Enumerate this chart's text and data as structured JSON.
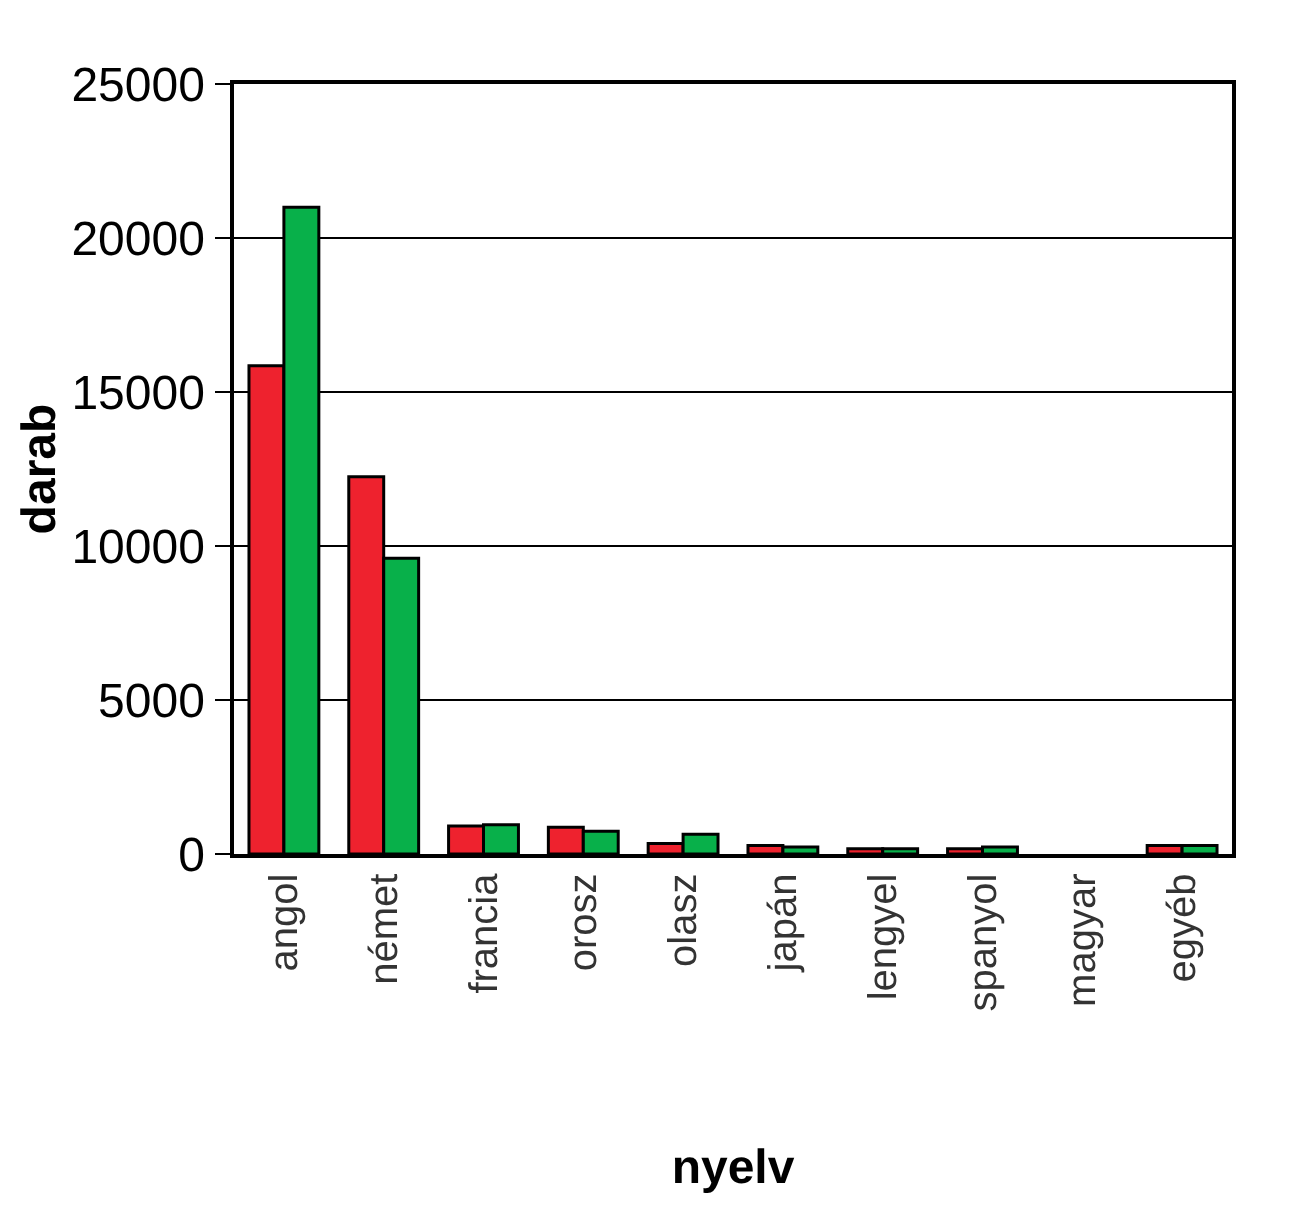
{
  "chart_data": {
    "type": "bar",
    "xlabel": "nyelv",
    "ylabel": "darab",
    "categories": [
      "angol",
      "német",
      "francia",
      "orosz",
      "olasz",
      "japán",
      "lengyel",
      "spanyol",
      "magyar",
      "egyéb"
    ],
    "series": [
      {
        "color": "#ee222e",
        "values": [
          15850,
          12250,
          910,
          870,
          340,
          280,
          170,
          170,
          null,
          280
        ]
      },
      {
        "color": "#08b04a",
        "values": [
          21000,
          9600,
          950,
          740,
          640,
          230,
          170,
          230,
          null,
          280
        ]
      }
    ],
    "ylim": [
      0,
      25000
    ],
    "yticks": [
      0,
      5000,
      10000,
      15000,
      20000,
      25000
    ],
    "grid": "y",
    "legend": false
  }
}
